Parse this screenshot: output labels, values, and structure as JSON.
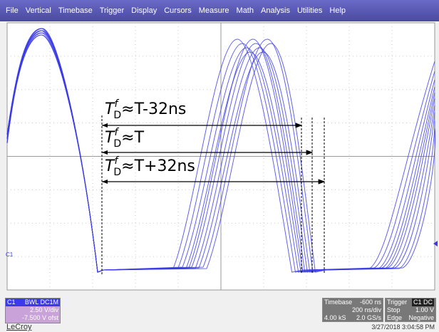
{
  "menu": [
    "File",
    "Vertical",
    "Timebase",
    "Trigger",
    "Display",
    "Cursors",
    "Measure",
    "Math",
    "Analysis",
    "Utilities",
    "Help"
  ],
  "screen": {
    "channel_marker": "C1",
    "annotations": [
      {
        "symbol": "T",
        "sup": "f",
        "sub": "D",
        "rest": "≈T-32ns"
      },
      {
        "symbol": "T",
        "sup": "f",
        "sub": "D",
        "rest": "≈T"
      },
      {
        "symbol": "T",
        "sup": "f",
        "sub": "D",
        "rest": "≈T+32ns"
      }
    ]
  },
  "channel": {
    "name": "C1",
    "flags": "BWL DC1M",
    "scale": "2.50 V/div",
    "offset": "-7.500 V ofst"
  },
  "timebase": {
    "label": "Timebase",
    "delay": "-600 ns",
    "scale": "200 ns/div",
    "samples": "4.00 kS",
    "rate": "2.0 GS/s"
  },
  "trigger": {
    "label": "Trigger",
    "source": "C1 DC",
    "mode": "Stop",
    "level": "1.00 V",
    "type": "Edge",
    "slope": "Negative"
  },
  "logo": "LeCroy",
  "timestamp": "3/27/2018 3:04:58 PM"
}
